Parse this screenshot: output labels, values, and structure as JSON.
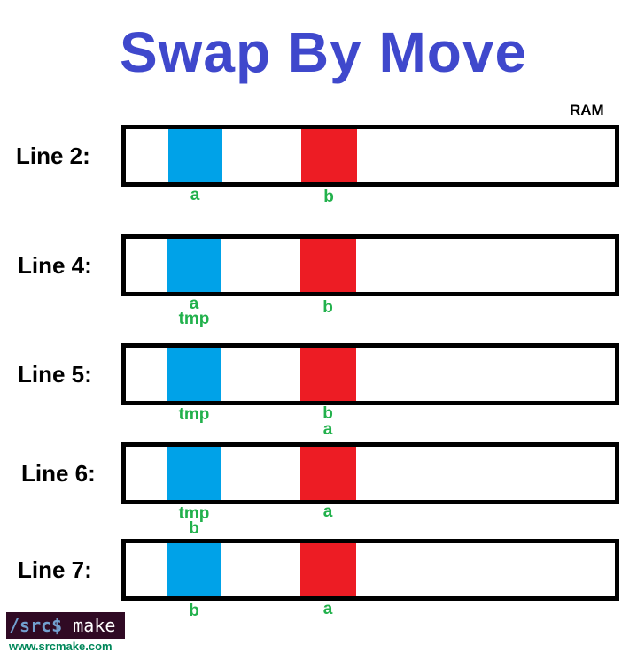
{
  "title": "Swap By Move",
  "ram_label": "RAM",
  "colors": {
    "title": "#3f48cc",
    "var_a_cell": "#00a2e8",
    "var_b_cell": "#ed1c24",
    "labels": "#22b14c"
  },
  "rows": [
    {
      "label": "Line 2:",
      "blue_labels": [
        "a"
      ],
      "red_labels": [
        "b"
      ]
    },
    {
      "label": "Line 4:",
      "blue_labels": [
        "a",
        "tmp"
      ],
      "red_labels": [
        "b"
      ]
    },
    {
      "label": "Line 5:",
      "blue_labels": [
        "tmp"
      ],
      "red_labels": [
        "b",
        "a"
      ]
    },
    {
      "label": "Line 6:",
      "blue_labels": [
        "tmp",
        "b"
      ],
      "red_labels": [
        "a"
      ]
    },
    {
      "label": "Line 7:",
      "blue_labels": [
        "b"
      ],
      "red_labels": [
        "a"
      ]
    }
  ],
  "logo": {
    "prompt": "/src$",
    "command": "make",
    "site": "www.srcmake.com"
  }
}
